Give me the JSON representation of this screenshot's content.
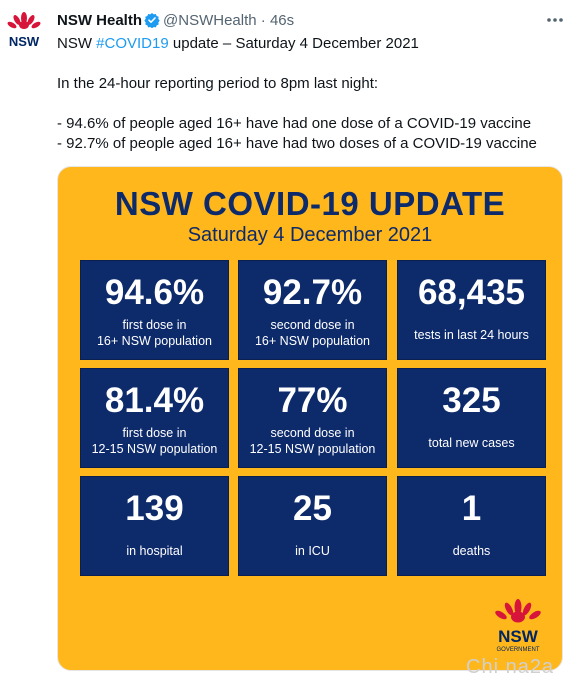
{
  "tweet": {
    "author_name": "NSW Health",
    "handle": "@NSWHealth",
    "separator": "·",
    "time": "46s",
    "avatar_text": "NSW",
    "text": {
      "line1_pre": "NSW ",
      "line1_hashtag": "#COVID19",
      "line1_post": " update – Saturday 4 December 2021",
      "line2": "In the 24-hour reporting period to 8pm last night:",
      "line3": "- 94.6% of people aged 16+ have had one dose of a COVID-19 vaccine",
      "line4": "- 92.7% of people aged 16+ have had two doses of a COVID-19 vaccine"
    }
  },
  "card": {
    "title": "NSW COVID-19 UPDATE",
    "subtitle": "Saturday 4 December 2021",
    "tiles": [
      {
        "value": "94.6%",
        "label1": "first dose in",
        "label2": "16+ NSW population"
      },
      {
        "value": "92.7%",
        "label1": "second dose in",
        "label2": "16+ NSW population"
      },
      {
        "value": "68,435",
        "label1": "tests in last 24 hours",
        "label2": ""
      },
      {
        "value": "81.4%",
        "label1": "first dose in",
        "label2": "12-15 NSW population"
      },
      {
        "value": "77%",
        "label1": "second dose in",
        "label2": "12-15 NSW population"
      },
      {
        "value": "325",
        "label1": "total new cases",
        "label2": ""
      },
      {
        "value": "139",
        "label1": "in hospital",
        "label2": ""
      },
      {
        "value": "25",
        "label1": "in ICU",
        "label2": ""
      },
      {
        "value": "1",
        "label1": "deaths",
        "label2": ""
      }
    ],
    "logo_text": "NSW",
    "logo_subtext": "GOVERNMENT"
  },
  "watermark": "Chi na2a",
  "colors": {
    "card_bg": "#ffb71b",
    "tile_bg": "#0d2a6b",
    "accent_red": "#d7153a",
    "link_blue": "#1d9bf0",
    "verified_blue": "#1d9bf0"
  },
  "icons": {
    "verified": "verified-badge-icon",
    "more": "more-options-icon",
    "logo": "waratah-logo-icon"
  }
}
